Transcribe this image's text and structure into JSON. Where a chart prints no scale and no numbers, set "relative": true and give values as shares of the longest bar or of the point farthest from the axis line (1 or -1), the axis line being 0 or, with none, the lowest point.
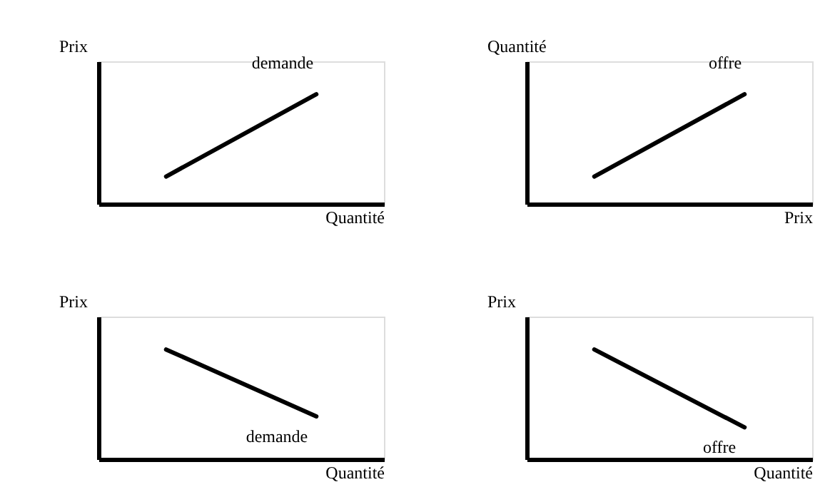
{
  "chart_data": [
    {
      "type": "line",
      "relative": true,
      "xlabel": "Quantité",
      "ylabel": "Prix",
      "categories": [
        null,
        null
      ],
      "tick_labels": false,
      "grid": false,
      "line_style": "solid",
      "series": [
        {
          "name": "demande",
          "color": "#000000",
          "values": [
            0.25,
            1
          ]
        }
      ]
    },
    {
      "type": "line",
      "relative": true,
      "xlabel": "Prix",
      "ylabel": "Quantité",
      "categories": [
        null,
        null
      ],
      "tick_labels": false,
      "grid": false,
      "line_style": "solid",
      "series": [
        {
          "name": "offre",
          "color": "#000000",
          "values": [
            0.25,
            1
          ]
        }
      ]
    },
    {
      "type": "line",
      "relative": true,
      "xlabel": "Quantité",
      "ylabel": "Prix",
      "categories": [
        null,
        null
      ],
      "tick_labels": false,
      "grid": false,
      "line_style": "solid",
      "series": [
        {
          "name": "demande",
          "color": "#000000",
          "values": [
            1,
            0.39
          ]
        }
      ]
    },
    {
      "type": "line",
      "relative": true,
      "xlabel": "Quantité",
      "ylabel": "Prix",
      "categories": [
        null,
        null
      ],
      "tick_labels": false,
      "grid": false,
      "line_style": "solid",
      "series": [
        {
          "name": "offre",
          "color": "#000000",
          "values": [
            1,
            0.29
          ]
        }
      ]
    }
  ]
}
